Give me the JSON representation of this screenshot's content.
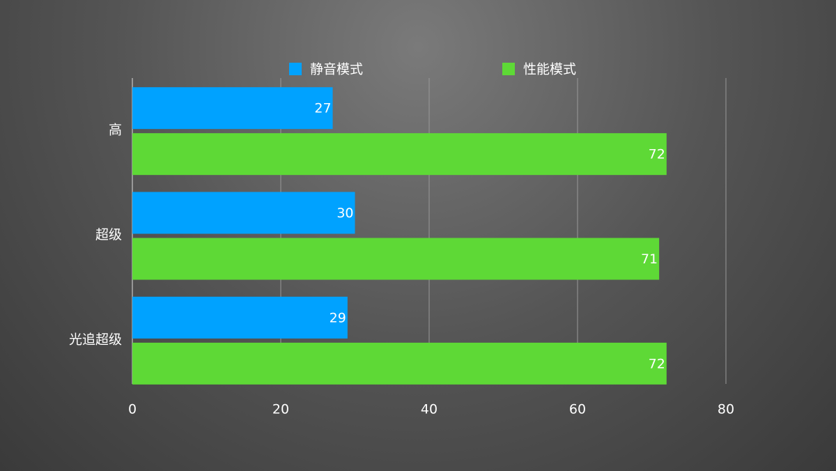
{
  "chart_data": {
    "type": "bar",
    "orientation": "horizontal",
    "categories": [
      "高",
      "超级",
      "光追超级"
    ],
    "series": [
      {
        "name": "静音模式",
        "color": "#00a2ff",
        "values": [
          27,
          30,
          29
        ]
      },
      {
        "name": "性能模式",
        "color": "#5ed936",
        "values": [
          72,
          71,
          72
        ]
      }
    ],
    "xlim": [
      0,
      80
    ],
    "xticks": [
      0,
      20,
      40,
      60,
      80
    ],
    "grid": true,
    "legend": "top"
  }
}
